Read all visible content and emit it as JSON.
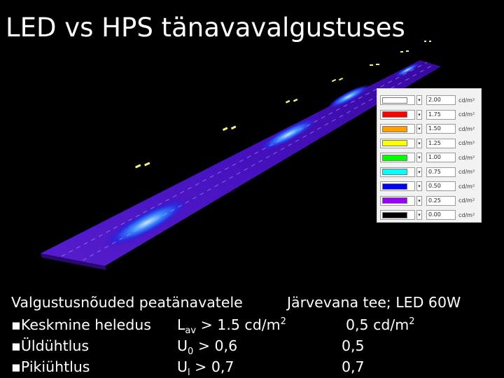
{
  "slide": {
    "title": "LED vs HPS tänavavalgustuses"
  },
  "legend": {
    "unit": "cd/m²",
    "rows": [
      {
        "value": "2.00",
        "color": "#ffffff"
      },
      {
        "value": "1.75",
        "color": "#ff0000"
      },
      {
        "value": "1.50",
        "color": "#ffa000"
      },
      {
        "value": "1.25",
        "color": "#ffff00"
      },
      {
        "value": "1.00",
        "color": "#00ff00"
      },
      {
        "value": "0.75",
        "color": "#00ffff"
      },
      {
        "value": "0.50",
        "color": "#0000ff"
      },
      {
        "value": "0.25",
        "color": "#9900ff"
      },
      {
        "value": "0.00",
        "color": "#000000"
      }
    ]
  },
  "requirements": {
    "heading": "Valgustusnõuded peatänavatele",
    "result_heading": "Järvevana tee; LED 60W",
    "rows": [
      {
        "bullet": "▪",
        "label": "Keskmine heledus",
        "symbol": "L",
        "symbol_sub": "av",
        "requirement": " > 1.5 cd/m",
        "requirement_sup": "2",
        "result": "0,5 cd/m",
        "result_sup": "2"
      },
      {
        "bullet": "▪",
        "label": "Üldühtlus",
        "symbol": "U",
        "symbol_sub": "0",
        "requirement": " > 0,6",
        "requirement_sup": "",
        "result": "0,5",
        "result_sup": ""
      },
      {
        "bullet": "▪",
        "label": "Pikiühtlus",
        "symbol": "U",
        "symbol_sub": "l",
        "requirement": " > 0,7",
        "requirement_sup": "",
        "result": "0,7",
        "result_sup": ""
      }
    ]
  }
}
